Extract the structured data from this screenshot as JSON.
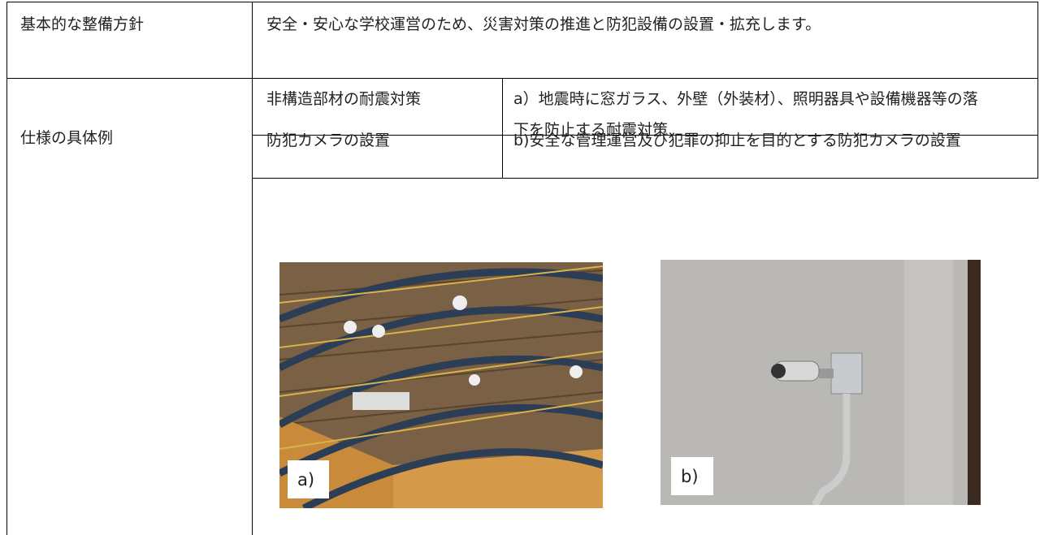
{
  "basic_policy": {
    "label": "基本的な整備方針",
    "text": "安全・安心な学校運営のため、災害対策の推進と防犯設備の設置・拡充します。"
  },
  "examples": {
    "label": "仕様の具体例",
    "items": [
      {
        "name": "非構造部材の耐震対策",
        "description": "a）地震時に窓ガラス、外壁（外装材）、照明器具や設備機器等の落下を防止する耐震対策"
      },
      {
        "name": "防犯カメラの設置",
        "description": "b)安全な管理運営及び犯罪の抑止を目的とする防犯カメラの設置"
      }
    ],
    "photos": [
      {
        "label": "a)"
      },
      {
        "label": "b)"
      }
    ]
  }
}
